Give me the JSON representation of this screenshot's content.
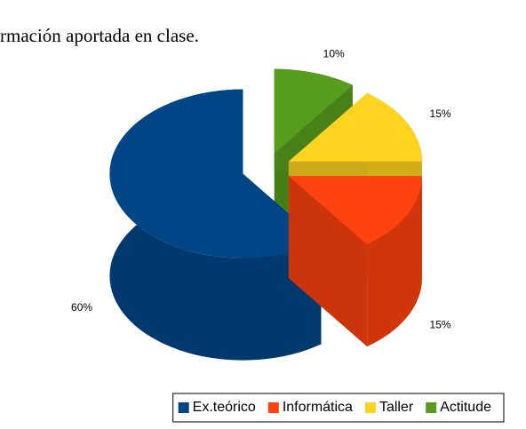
{
  "chart_data": {
    "type": "pie",
    "title": "rmación aportada en clase.",
    "categories": [
      "Ex.teórico",
      "Informática",
      "Taller",
      "Actitude"
    ],
    "values": [
      60,
      15,
      15,
      10
    ],
    "value_labels": [
      "60%",
      "15%",
      "15%",
      "10%"
    ],
    "colors": [
      "#004586",
      "#ff420e",
      "#ffd320",
      "#579d1c"
    ],
    "legend": "bottom"
  }
}
